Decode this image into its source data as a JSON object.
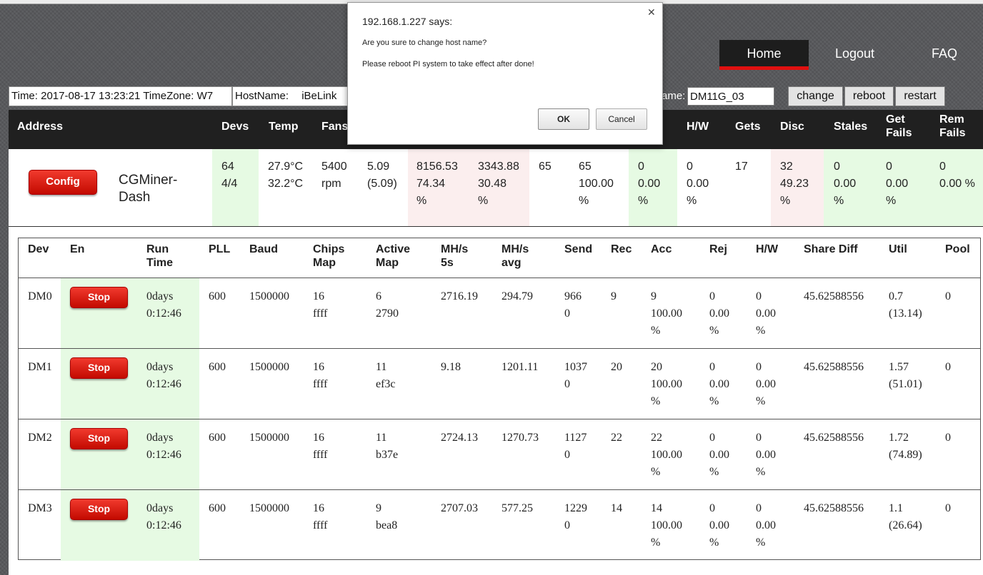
{
  "nav": {
    "home": "Home",
    "logout": "Logout",
    "faq": "FAQ"
  },
  "info_bar": {
    "time": "Time: 2017-08-17 13:23:21 TimeZone: W7",
    "hostname_label": "HostName:",
    "hostname_value": "iBeLink",
    "new_name_label": "ame:",
    "new_name_value": "DM11G_03",
    "change_button": "change",
    "reboot_button": "reboot",
    "restart_button": "restart"
  },
  "summary": {
    "headers": {
      "address": "Address",
      "devs": "Devs",
      "temp": "Temp",
      "fans": "Fans",
      "hw": "H/W",
      "gets": "Gets",
      "disc": "Disc",
      "stales": "Stales",
      "get_fails": "Get\nFails",
      "rem_fails": "Rem\nFails"
    },
    "row": {
      "config_button": "Config",
      "name": "CGMiner-Dash",
      "devs": "64\n4/4",
      "temp": "27.9°C\n32.2°C",
      "fans": "5400\nrpm",
      "col_mhs5s": "5.09\n(5.09)",
      "col_mhsavg": "8156.53\n74.34\n%",
      "col_found": "3343.88\n30.48\n%",
      "col_a": "65",
      "col_accepted": "65\n100.00\n%",
      "col_rejected": "0\n0.00\n%",
      "hw": "0\n0.00\n%",
      "gets": "17",
      "disc": "32\n49.23\n%",
      "stales": "0\n0.00\n%",
      "get_fails": "0\n0.00\n%",
      "rem_fails": "0\n0.00 %"
    }
  },
  "devices": {
    "headers": {
      "dev": "Dev",
      "en": "En",
      "run_time": "Run\nTime",
      "pll": "PLL",
      "baud": "Baud",
      "chips_map": "Chips\nMap",
      "active_map": "Active\nMap",
      "mhs_5s": "MH/s\n5s",
      "mhs_avg": "MH/s\navg",
      "send": "Send",
      "rec": "Rec",
      "acc": "Acc",
      "rej": "Rej",
      "hw": "H/W",
      "share_diff": "Share Diff",
      "util": "Util",
      "pool": "Pool"
    },
    "rows": [
      {
        "dev": "DM0",
        "en": "Stop",
        "run_time": "0days\n0:12:46",
        "pll": "600",
        "baud": "1500000",
        "chips_map": "16\nffff",
        "active_map": "6\n2790",
        "mhs_5s": "2716.19",
        "mhs_avg": "294.79",
        "send": "966\n0",
        "rec": "9",
        "acc": "9\n100.00\n%",
        "rej": "0\n0.00\n%",
        "hw": "0\n0.00\n%",
        "share_diff": "45.62588556",
        "util": "0.7\n(13.14)",
        "pool": "0"
      },
      {
        "dev": "DM1",
        "en": "Stop",
        "run_time": "0days\n0:12:46",
        "pll": "600",
        "baud": "1500000",
        "chips_map": "16\nffff",
        "active_map": "11\nef3c",
        "mhs_5s": "9.18",
        "mhs_avg": "1201.11",
        "send": "1037\n0",
        "rec": "20",
        "acc": "20\n100.00\n%",
        "rej": "0\n0.00\n%",
        "hw": "0\n0.00\n%",
        "share_diff": "45.62588556",
        "util": "1.57\n(51.01)",
        "pool": "0"
      },
      {
        "dev": "DM2",
        "en": "Stop",
        "run_time": "0days\n0:12:46",
        "pll": "600",
        "baud": "1500000",
        "chips_map": "16\nffff",
        "active_map": "11\nb37e",
        "mhs_5s": "2724.13",
        "mhs_avg": "1270.73",
        "send": "1127\n0",
        "rec": "22",
        "acc": "22\n100.00\n%",
        "rej": "0\n0.00\n%",
        "hw": "0\n0.00\n%",
        "share_diff": "45.62588556",
        "util": "1.72\n(74.89)",
        "pool": "0"
      },
      {
        "dev": "DM3",
        "en": "Stop",
        "run_time": "0days\n0:12:46",
        "pll": "600",
        "baud": "1500000",
        "chips_map": "16\nffff",
        "active_map": "9\nbea8",
        "mhs_5s": "2707.03",
        "mhs_avg": "577.25",
        "send": "1229\n0",
        "rec": "14",
        "acc": "14\n100.00\n%",
        "rej": "0\n0.00\n%",
        "hw": "0\n0.00\n%",
        "share_diff": "45.62588556",
        "util": "1.1\n(26.64)",
        "pool": "0"
      }
    ]
  },
  "dialog": {
    "title": "192.168.1.227 says:",
    "close_icon": "close-icon",
    "message_line1": "Are you sure to change host name?",
    "message_line2": "Please reboot PI system to take effect after done!",
    "ok": "OK",
    "cancel": "Cancel"
  }
}
